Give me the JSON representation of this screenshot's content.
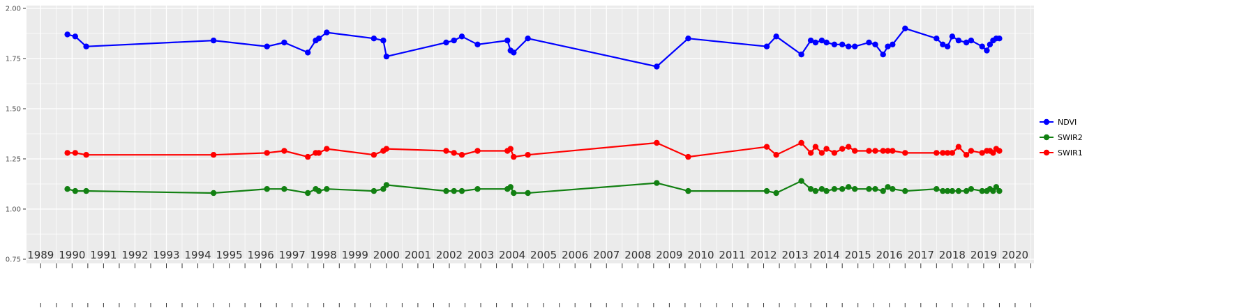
{
  "chart_data": {
    "type": "line",
    "title": "",
    "xlabel": "",
    "ylabel": "",
    "xlim": [
      1988.55,
      2020.6
    ],
    "ylim": [
      0.75,
      2.0
    ],
    "x_ticks": [
      1989,
      1990,
      1991,
      1992,
      1993,
      1994,
      1995,
      1996,
      1997,
      1998,
      1999,
      2000,
      2001,
      2002,
      2003,
      2004,
      2005,
      2006,
      2007,
      2008,
      2009,
      2010,
      2011,
      2012,
      2013,
      2014,
      2015,
      2016,
      2017,
      2018,
      2019,
      2020
    ],
    "y_ticks": [
      0.75,
      1.0,
      1.25,
      1.5,
      1.75,
      2.0
    ],
    "y_tick_labels": [
      "0.75",
      "1.00",
      "1.25",
      "1.50",
      "1.75",
      "2.00"
    ],
    "grid": "on",
    "legend_position": "right",
    "panel_bg": "#EBEBEB",
    "grid_color": "#FFFFFF",
    "tick_color": "#333333",
    "tick_label_color": "#4D4D4D",
    "x": [
      1989.85,
      1990.1,
      1990.45,
      1994.5,
      1996.2,
      1996.75,
      1997.5,
      1997.75,
      1997.85,
      1998.1,
      1999.6,
      1999.9,
      2000.0,
      2001.9,
      2002.15,
      2002.4,
      2002.9,
      2003.85,
      2003.95,
      2004.05,
      2004.5,
      2008.6,
      2009.6,
      2012.1,
      2012.4,
      2013.2,
      2013.5,
      2013.65,
      2013.85,
      2014.0,
      2014.25,
      2014.5,
      2014.7,
      2014.9,
      2015.35,
      2015.55,
      2015.8,
      2015.95,
      2016.1,
      2016.5,
      2017.5,
      2017.7,
      2017.85,
      2018.0,
      2018.2,
      2018.45,
      2018.6,
      2018.95,
      2019.1,
      2019.2,
      2019.3,
      2019.4,
      2019.5
    ],
    "series": [
      {
        "name": "NDVI",
        "color": "#0000FF",
        "values": [
          1.87,
          1.86,
          1.81,
          1.84,
          1.81,
          1.83,
          1.78,
          1.84,
          1.85,
          1.88,
          1.85,
          1.84,
          1.76,
          1.83,
          1.84,
          1.86,
          1.82,
          1.84,
          1.79,
          1.78,
          1.85,
          1.71,
          1.85,
          1.81,
          1.86,
          1.77,
          1.84,
          1.83,
          1.84,
          1.83,
          1.82,
          1.82,
          1.81,
          1.81,
          1.83,
          1.82,
          1.77,
          1.81,
          1.82,
          1.9,
          1.85,
          1.82,
          1.81,
          1.86,
          1.84,
          1.83,
          1.84,
          1.81,
          1.79,
          1.82,
          1.84,
          1.85,
          1.85
        ]
      },
      {
        "name": "SWIR2",
        "color": "#128012",
        "values": [
          1.1,
          1.09,
          1.09,
          1.08,
          1.1,
          1.1,
          1.08,
          1.1,
          1.09,
          1.1,
          1.09,
          1.1,
          1.12,
          1.09,
          1.09,
          1.09,
          1.1,
          1.1,
          1.11,
          1.08,
          1.08,
          1.13,
          1.09,
          1.09,
          1.08,
          1.14,
          1.1,
          1.09,
          1.1,
          1.09,
          1.1,
          1.1,
          1.11,
          1.1,
          1.1,
          1.1,
          1.09,
          1.11,
          1.1,
          1.09,
          1.1,
          1.09,
          1.09,
          1.09,
          1.09,
          1.09,
          1.1,
          1.09,
          1.09,
          1.1,
          1.09,
          1.11,
          1.09
        ]
      },
      {
        "name": "SWIR1",
        "color": "#FF0000",
        "values": [
          1.28,
          1.28,
          1.27,
          1.27,
          1.28,
          1.29,
          1.26,
          1.28,
          1.28,
          1.3,
          1.27,
          1.29,
          1.3,
          1.29,
          1.28,
          1.27,
          1.29,
          1.29,
          1.3,
          1.26,
          1.27,
          1.33,
          1.26,
          1.31,
          1.27,
          1.33,
          1.28,
          1.31,
          1.28,
          1.3,
          1.28,
          1.3,
          1.31,
          1.29,
          1.29,
          1.29,
          1.29,
          1.29,
          1.29,
          1.28,
          1.28,
          1.28,
          1.28,
          1.28,
          1.31,
          1.27,
          1.29,
          1.28,
          1.29,
          1.29,
          1.28,
          1.3,
          1.29
        ]
      }
    ]
  },
  "legend": {
    "items": [
      {
        "label": "NDVI",
        "color": "#0000FF"
      },
      {
        "label": "SWIR2",
        "color": "#128012"
      },
      {
        "label": "SWIR1",
        "color": "#FF0000"
      }
    ]
  }
}
